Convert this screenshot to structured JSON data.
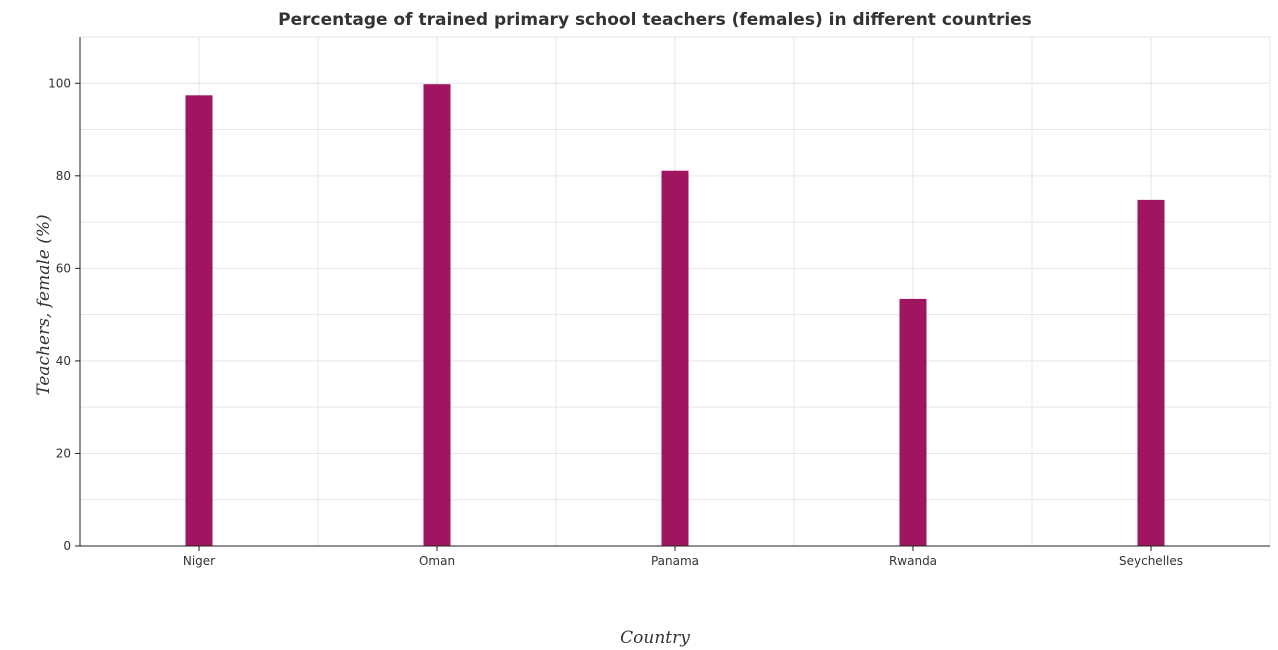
{
  "chart_data": {
    "type": "bar",
    "title": "Percentage of trained primary school teachers (females) in different countries",
    "xlabel": "Country",
    "ylabel": "Teachers, female (%)",
    "categories": [
      "Niger",
      "Oman",
      "Panama",
      "Rwanda",
      "Seychelles"
    ],
    "series": [
      {
        "values": [
          97.4,
          99.8,
          81.1,
          53.4,
          74.8
        ]
      }
    ],
    "ylim": [
      0,
      110
    ],
    "yticks": [
      0,
      20,
      40,
      60,
      80,
      100
    ],
    "grid": true,
    "legend": "none",
    "colors": {
      "bar": "#a0155f"
    }
  }
}
